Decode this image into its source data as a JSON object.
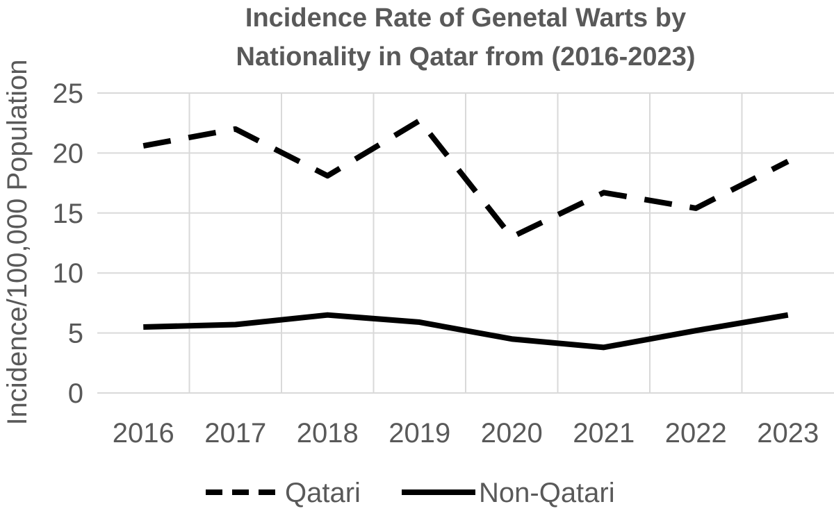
{
  "chart_data": {
    "type": "line",
    "title": [
      "Incidence Rate of Genetal Warts by",
      "Nationality in Qatar from (2016-2023)"
    ],
    "xlabel": "",
    "ylabel": "Incidence/100,000 Population",
    "categories": [
      "2016",
      "2017",
      "2018",
      "2019",
      "2020",
      "2021",
      "2022",
      "2023"
    ],
    "ylim": [
      0,
      25
    ],
    "yticks": [
      "0",
      "5",
      "10",
      "15",
      "20",
      "25"
    ],
    "grid": true,
    "legend_position": "bottom",
    "series": [
      {
        "name": "Qatari",
        "style": "dashed",
        "color": "#000000",
        "values": [
          20.6,
          22.0,
          18.1,
          22.7,
          13.0,
          16.7,
          15.4,
          19.3
        ]
      },
      {
        "name": "Non-Qatari",
        "style": "solid",
        "color": "#000000",
        "values": [
          5.5,
          5.7,
          6.5,
          5.9,
          4.5,
          3.8,
          5.2,
          6.5
        ]
      }
    ]
  }
}
